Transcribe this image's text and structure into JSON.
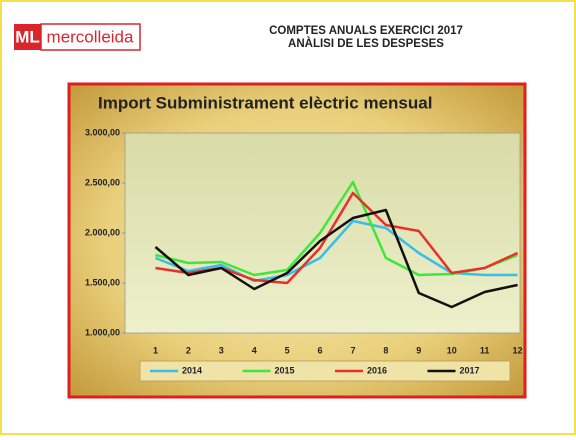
{
  "header": {
    "logo_mark": "ML",
    "logo_text": "mercolleida",
    "title": "COMPTES ANUALS EXERCICI 2017",
    "subtitle": "ANÀLISI DE LES DESPESES"
  },
  "chart_data": {
    "type": "line",
    "title": "Import Subministrament elèctric mensual",
    "categories": [
      "1",
      "2",
      "3",
      "4",
      "5",
      "6",
      "7",
      "8",
      "9",
      "10",
      "11",
      "12"
    ],
    "series": [
      {
        "name": "2014",
        "color": "#3cbce8",
        "values": [
          1750,
          1620,
          1680,
          1520,
          1580,
          1750,
          2120,
          2050,
          1800,
          1600,
          1580,
          1580
        ]
      },
      {
        "name": "2015",
        "color": "#3ee83a",
        "values": [
          1780,
          1700,
          1710,
          1580,
          1630,
          2000,
          2510,
          1750,
          1580,
          1590,
          1650,
          1780
        ]
      },
      {
        "name": "2016",
        "color": "#e8302a",
        "values": [
          1650,
          1600,
          1650,
          1530,
          1500,
          1850,
          2400,
          2080,
          2020,
          1600,
          1650,
          1800
        ]
      },
      {
        "name": "2017",
        "color": "#111111",
        "values": [
          1860,
          1580,
          1650,
          1440,
          1600,
          1920,
          2150,
          2230,
          1400,
          1260,
          1410,
          1480
        ]
      }
    ],
    "ylim": [
      1000,
      3000
    ],
    "yticks": [
      {
        "value": 1000,
        "label": "1.000,00"
      },
      {
        "value": 1500,
        "label": "1.500,00"
      },
      {
        "value": 2000,
        "label": "2.000,00"
      },
      {
        "value": 2500,
        "label": "2.500,00"
      },
      {
        "value": 3000,
        "label": "3.000,00"
      }
    ],
    "grid": false,
    "legend": "bottom"
  }
}
